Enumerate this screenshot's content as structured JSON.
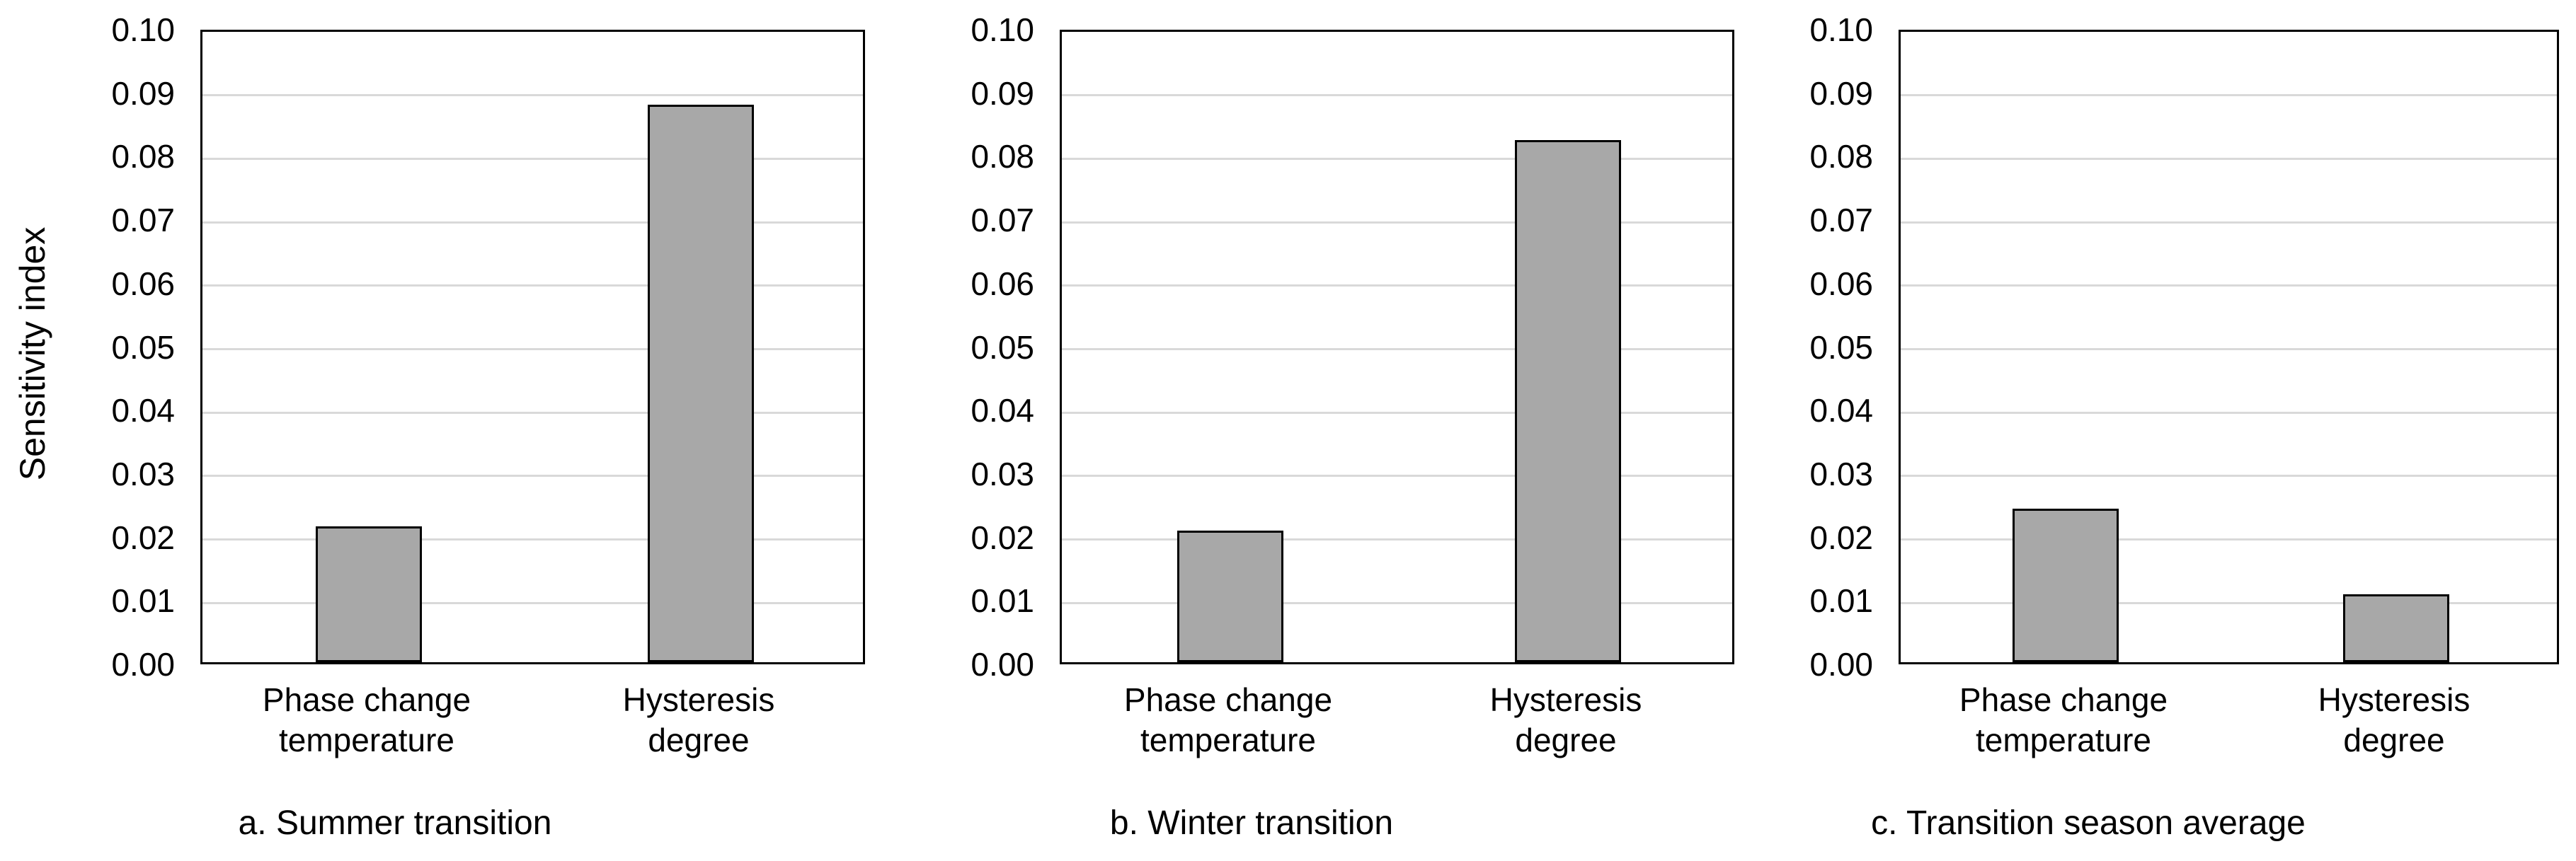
{
  "figure": {
    "ylabel": "Sensitivity index"
  },
  "colors": {
    "background": "#FFFFFF",
    "bar_fill": "#A8A8A8",
    "bar_border": "#000000",
    "gridline": "#D9D9D9",
    "plot_border": "#000000",
    "text": "#000000"
  },
  "chart_data": [
    {
      "type": "bar",
      "title": "a. Summer transition",
      "categories": [
        "Phase change\ntemperature",
        "Hysteresis\ndegree"
      ],
      "values": [
        0.0214,
        0.0878
      ],
      "xlabel": "",
      "ylabel": "Sensitivity index",
      "ylim": [
        0,
        0.1
      ],
      "ytick_step": 0.01,
      "yticks": [
        "0.00",
        "0.01",
        "0.02",
        "0.03",
        "0.04",
        "0.05",
        "0.06",
        "0.07",
        "0.08",
        "0.09",
        "0.10"
      ],
      "grid": true,
      "legend": false
    },
    {
      "type": "bar",
      "title": "b. Winter transition",
      "categories": [
        "Phase change\ntemperature",
        "Hysteresis\ndegree"
      ],
      "values": [
        0.0207,
        0.0823
      ],
      "xlabel": "",
      "ylabel": "",
      "ylim": [
        0,
        0.1
      ],
      "ytick_step": 0.01,
      "yticks": [
        "0.00",
        "0.01",
        "0.02",
        "0.03",
        "0.04",
        "0.05",
        "0.06",
        "0.07",
        "0.08",
        "0.09",
        "0.10"
      ],
      "grid": true,
      "legend": false
    },
    {
      "type": "bar",
      "title": "c. Transition season average",
      "categories": [
        "Phase change\ntemperature",
        "Hysteresis\ndegree"
      ],
      "values": [
        0.0242,
        0.0107
      ],
      "xlabel": "",
      "ylabel": "",
      "ylim": [
        0,
        0.1
      ],
      "ytick_step": 0.01,
      "yticks": [
        "0.00",
        "0.01",
        "0.02",
        "0.03",
        "0.04",
        "0.05",
        "0.06",
        "0.07",
        "0.08",
        "0.09",
        "0.10"
      ],
      "grid": true,
      "legend": false
    }
  ]
}
